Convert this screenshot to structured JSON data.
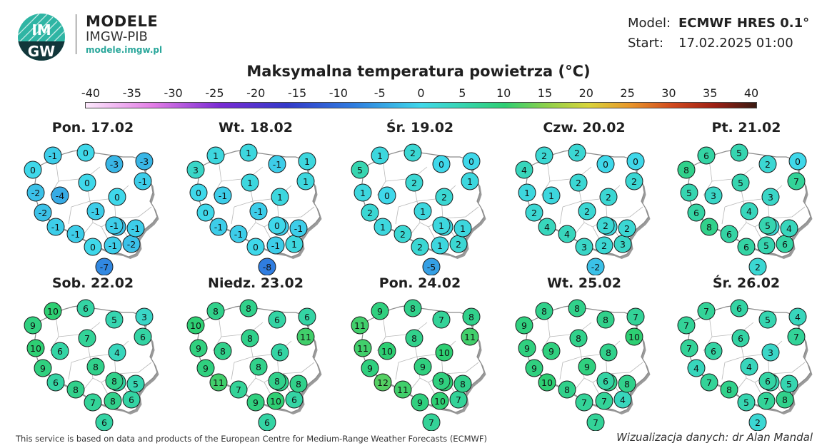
{
  "header": {
    "brand_title": "MODELE",
    "brand_subtitle": "IMGW-PIB",
    "brand_url": "modele.imgw.pl",
    "logo_text_top": "IM",
    "logo_text_bottom": "GW",
    "model_label": "Model:",
    "model_value": "ECMWF HRES 0.1°",
    "start_label": "Start:",
    "start_value": "17.02.2025 01:00"
  },
  "title": "Maksymalna temperatura powietrza (°C)",
  "colorbar": {
    "ticks": [
      "-40",
      "-35",
      "-30",
      "-25",
      "-20",
      "-15",
      "-10",
      "-5",
      "0",
      "5",
      "10",
      "15",
      "20",
      "25",
      "30",
      "35",
      "40"
    ],
    "min": -40,
    "max": 40,
    "stops": [
      {
        "v": -40,
        "c": "#fce8fb"
      },
      {
        "v": -32,
        "c": "#e37de6"
      },
      {
        "v": -24,
        "c": "#7a2bd4"
      },
      {
        "v": -16,
        "c": "#3339c9"
      },
      {
        "v": -8,
        "c": "#2f7de0"
      },
      {
        "v": 0,
        "c": "#3fd8ea"
      },
      {
        "v": 5,
        "c": "#36d5b0"
      },
      {
        "v": 10,
        "c": "#2ecf73"
      },
      {
        "v": 15,
        "c": "#8fd14a"
      },
      {
        "v": 20,
        "c": "#d9d43a"
      },
      {
        "v": 25,
        "c": "#e8952a"
      },
      {
        "v": 30,
        "c": "#d1491e"
      },
      {
        "v": 35,
        "c": "#9e1f14"
      },
      {
        "v": 40,
        "c": "#3a1a12"
      }
    ]
  },
  "panels": [
    {
      "date": "Pon. 17.02",
      "values": [
        -1,
        0,
        0,
        -3,
        -3,
        -2,
        -4,
        0,
        0,
        -1,
        -2,
        -1,
        -1,
        -2,
        -1,
        0,
        -1,
        -2,
        -1,
        -7,
        -1
      ]
    },
    {
      "date": "Wt. 18.02",
      "values": [
        1,
        1,
        3,
        -1,
        1,
        0,
        -1,
        1,
        1,
        1,
        0,
        -1,
        -1,
        -1,
        -1,
        0,
        -1,
        1,
        0,
        -8,
        -1
      ]
    },
    {
      "date": "Śr. 19.02",
      "values": [
        1,
        2,
        5,
        0,
        0,
        1,
        0,
        2,
        2,
        1,
        2,
        1,
        1,
        1,
        2,
        2,
        1,
        2,
        1,
        -5,
        1
      ]
    },
    {
      "date": "Czw. 20.02",
      "values": [
        2,
        2,
        4,
        0,
        0,
        1,
        1,
        2,
        2,
        2,
        2,
        2,
        4,
        1,
        4,
        3,
        2,
        3,
        2,
        -2,
        2
      ]
    },
    {
      "date": "Pt. 21.02",
      "values": [
        6,
        5,
        8,
        2,
        0,
        5,
        3,
        5,
        3,
        7,
        6,
        4,
        8,
        2,
        6,
        6,
        5,
        6,
        5,
        2,
        4
      ]
    },
    {
      "date": "Sob. 22.02",
      "values": [
        10,
        6,
        9,
        5,
        3,
        10,
        6,
        7,
        4,
        6,
        9,
        8,
        6,
        6,
        8,
        7,
        8,
        6,
        8,
        6,
        5
      ]
    },
    {
      "date": "Niedz. 23.02",
      "values": [
        8,
        8,
        10,
        6,
        6,
        9,
        8,
        8,
        6,
        11,
        9,
        8,
        11,
        8,
        7,
        9,
        10,
        6,
        8,
        6,
        8
      ]
    },
    {
      "date": "Pon. 24.02",
      "values": [
        9,
        8,
        11,
        7,
        8,
        11,
        10,
        8,
        10,
        11,
        9,
        9,
        12,
        10,
        11,
        9,
        10,
        7,
        9,
        7,
        8
      ]
    },
    {
      "date": "Wt. 25.02",
      "values": [
        8,
        8,
        9,
        8,
        7,
        9,
        9,
        8,
        8,
        10,
        9,
        9,
        10,
        8,
        8,
        7,
        7,
        4,
        6,
        7,
        8
      ]
    },
    {
      "date": "Śr. 26.02",
      "values": [
        7,
        6,
        7,
        5,
        4,
        7,
        6,
        6,
        3,
        7,
        4,
        4,
        7,
        5,
        8,
        5,
        7,
        8,
        6,
        2,
        5
      ]
    }
  ],
  "footer": {
    "credit_left": "This service is based on data and products of the European Centre for Medium-Range Weather Forecasts (ECMWF)",
    "credit_right": "Wizualizacja danych: dr Alan Mandal"
  }
}
